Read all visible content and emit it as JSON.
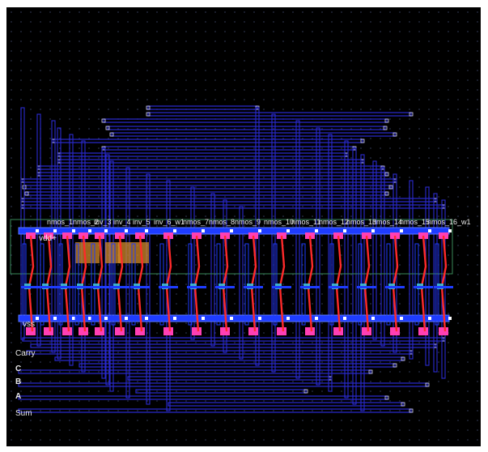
{
  "colors": {
    "background": "#000000",
    "grid_dot": "#2e3550",
    "metal1": "#1e3cff",
    "metal2_wire": "#2a2ad0",
    "poly": "#ff2a2a",
    "diffusion": "#ff3fb4",
    "nwell": "#d08a2a",
    "contact": "#40c0d8",
    "nwell_outline": "#3a8a5a"
  },
  "cell_labels": [
    "nmos_1",
    "nmos_2",
    "inv_3",
    "inv_4",
    "inv_5",
    "inv_6_w1",
    "nmos_7",
    "nmos_8",
    "nmos_9",
    "nmos_10",
    "nmos_11",
    "nmos_12",
    "nmos_13",
    "nmos_14",
    "nmos_15",
    "nmos_16_w1"
  ],
  "rails": {
    "vdd": "vdd+",
    "vss": "vss"
  },
  "pins": [
    "Carry",
    "C",
    "B",
    "A",
    "Sum"
  ]
}
